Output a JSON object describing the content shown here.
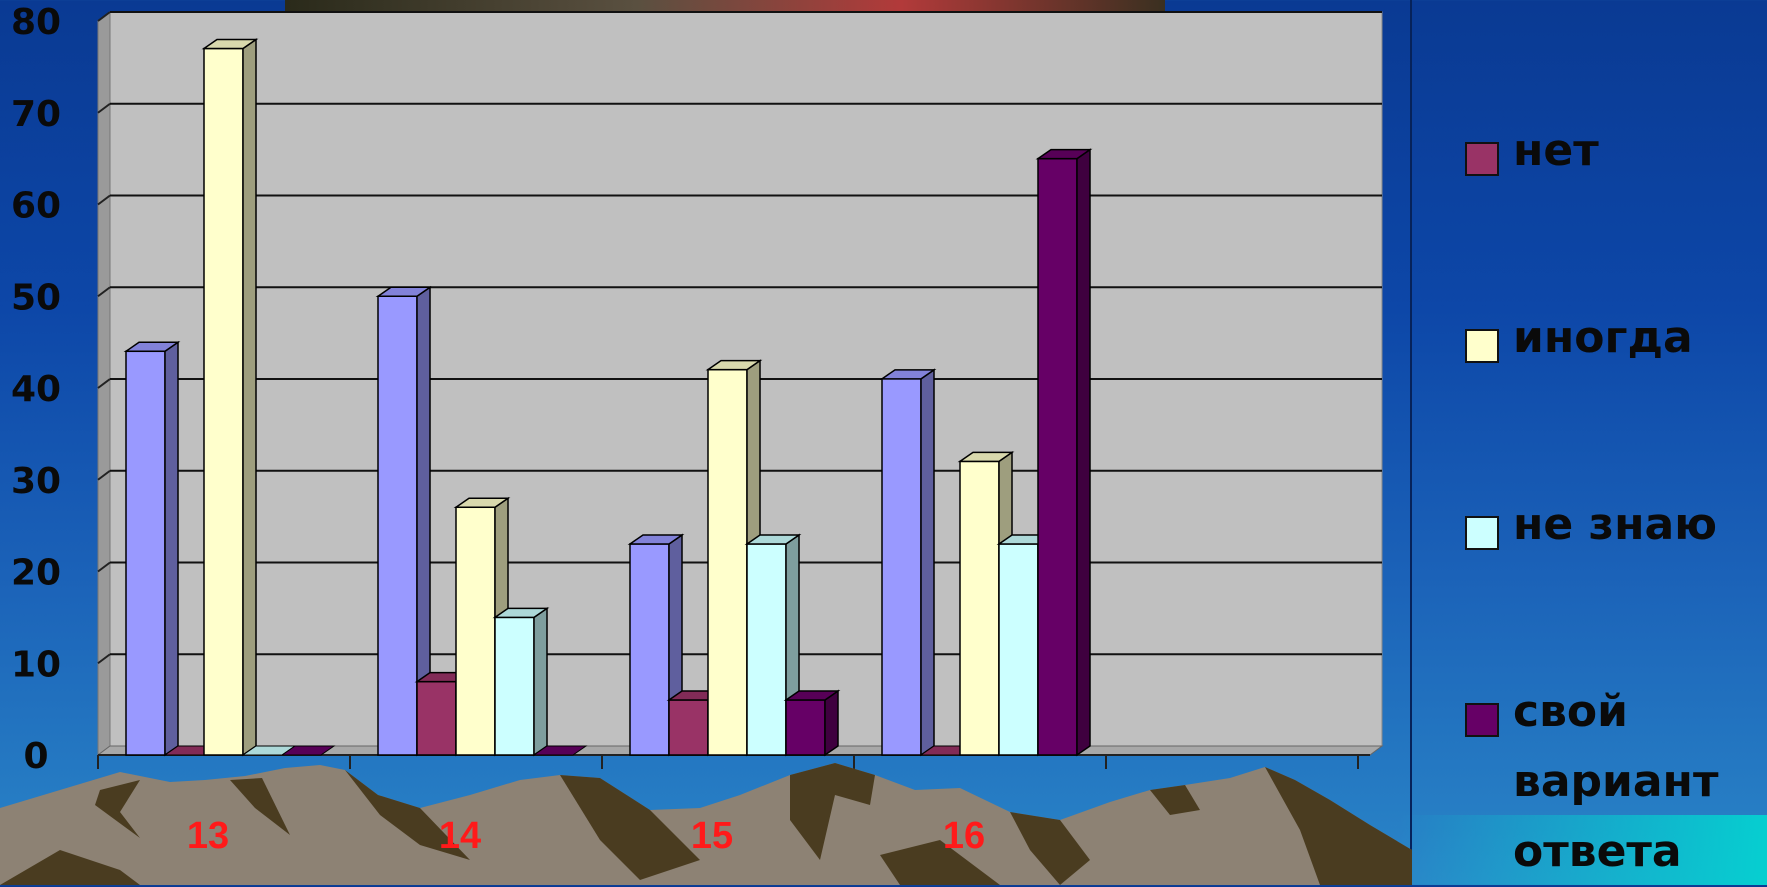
{
  "chart_data": {
    "type": "bar",
    "categories": [
      "13",
      "14",
      "15",
      "16"
    ],
    "ylim": [
      0,
      80
    ],
    "yticks": [
      "0",
      "10",
      "20",
      "30",
      "40",
      "50",
      "60",
      "70",
      "80"
    ],
    "grid": true,
    "legend_position": "right",
    "series": [
      {
        "values": [
          44,
          50,
          23,
          41
        ],
        "color": "#9999ff"
      },
      {
        "name": "нет",
        "values": [
          0,
          8,
          6,
          0
        ],
        "color": "#993366"
      },
      {
        "name": "иногда",
        "values": [
          77,
          27,
          42,
          32
        ],
        "color": "#ffffcc"
      },
      {
        "name": "не знаю",
        "values": [
          0,
          15,
          23,
          23
        ],
        "color": "#ccffff"
      },
      {
        "name": "свой вариант ответа",
        "values": [
          0,
          0,
          6,
          65
        ],
        "color": "#660066"
      }
    ]
  },
  "legend": [
    {
      "label": "нет",
      "color": "#993366"
    },
    {
      "label": " не знаю",
      "color": "#ccffff",
      "placeholder": true
    },
    {
      "label": "иногда",
      "color": "#ffffcc"
    },
    {
      "label": " не знаю",
      "color": "#ccffff"
    },
    {
      "label": "свой\nвариант\nответа",
      "color": "#660066"
    }
  ]
}
